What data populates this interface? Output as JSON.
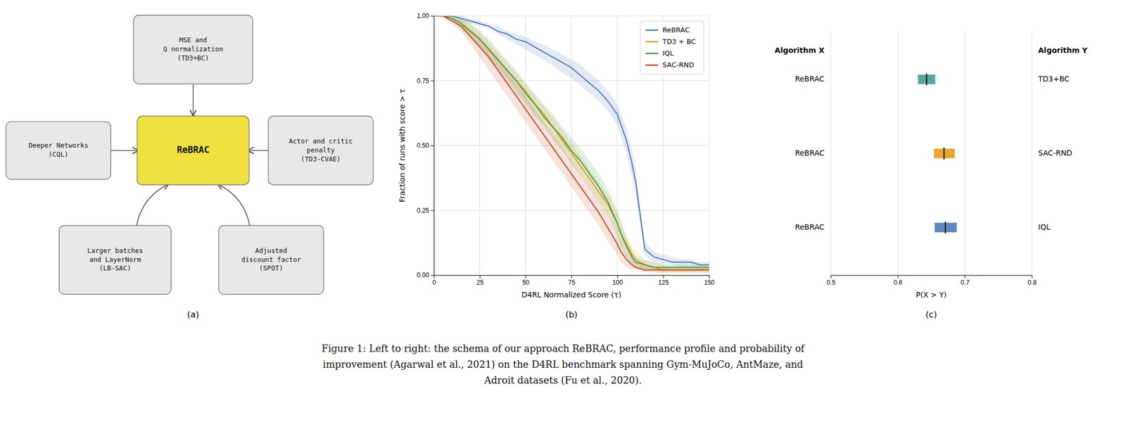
{
  "caption": "Figure 1: Left to right: the schema of our approach ReBRAC, performance profile and probability of\nimprovement (Agarwal et al., 2021) on the D4RL benchmark spanning Gym-MuJoCo, AntMaze, and\nAdroit datasets (Fu et al., 2020).",
  "chart_data": [
    {
      "type": "flow",
      "title": "(a)",
      "nodes": [
        "ReBRAC",
        "MSE and\nQ normalization\n(TD3+BC)",
        "Deeper Networks\n(CQL)",
        "Actor and critic\npenalty\n(TD3-CVAE)",
        "Larger batches\nand LayerNorm\n(LB-SAC)",
        "Adjusted\ndiscount factor\n(SPOT)"
      ],
      "colors": [
        "#f0e040",
        "#e8e8e8",
        "#e8e8e8",
        "#e8e8e8",
        "#e8e8e8",
        "#e8e8e8"
      ],
      "links": [
        {
          "source": 1,
          "target": 0
        },
        {
          "source": 2,
          "target": 0
        },
        {
          "source": 3,
          "target": 0
        },
        {
          "source": 4,
          "target": 0
        },
        {
          "source": 5,
          "target": 0
        }
      ]
    },
    {
      "type": "line",
      "title": "(b)",
      "x_label": "D4RL Normalized Score (τ)",
      "y_label": "Fraction of runs with score > τ",
      "x": [
        0,
        5,
        10,
        15,
        20,
        25,
        30,
        35,
        40,
        45,
        50,
        55,
        60,
        65,
        70,
        75,
        80,
        85,
        90,
        95,
        100,
        102,
        105,
        108,
        110,
        115,
        120,
        125,
        130,
        135,
        140,
        145,
        150
      ],
      "xlim": [
        0,
        150
      ],
      "ylim": [
        0.0,
        1.0
      ],
      "xticks": [
        0,
        25,
        50,
        75,
        100,
        125,
        150
      ],
      "yticks": [
        {
          "value": 0.0,
          "label": "0.00"
        },
        {
          "value": 0.25,
          "label": "0.25"
        },
        {
          "value": 0.5,
          "label": "0.50"
        },
        {
          "value": 0.75,
          "label": "0.75"
        },
        {
          "value": 1.0,
          "label": "1.00"
        }
      ],
      "grid": true,
      "legend": "upper right",
      "series": [
        {
          "name": "ReBRAC",
          "color": "#4475b4",
          "values": [
            1.0,
            1.0,
            1.0,
            0.99,
            0.98,
            0.97,
            0.96,
            0.94,
            0.93,
            0.91,
            0.9,
            0.88,
            0.86,
            0.84,
            0.82,
            0.8,
            0.77,
            0.74,
            0.71,
            0.67,
            0.62,
            0.58,
            0.52,
            0.43,
            0.36,
            0.1,
            0.07,
            0.06,
            0.05,
            0.05,
            0.05,
            0.04,
            0.04
          ],
          "y_low": [
            1.0,
            1.0,
            0.99,
            0.98,
            0.97,
            0.96,
            0.95,
            0.93,
            0.91,
            0.89,
            0.87,
            0.85,
            0.83,
            0.81,
            0.78,
            0.76,
            0.73,
            0.7,
            0.67,
            0.63,
            0.58,
            0.53,
            0.47,
            0.38,
            0.31,
            0.07,
            0.05,
            0.04,
            0.04,
            0.03,
            0.03,
            0.03,
            0.03
          ],
          "y_high": [
            1.0,
            1.0,
            1.0,
            1.0,
            0.99,
            0.98,
            0.97,
            0.96,
            0.94,
            0.93,
            0.92,
            0.9,
            0.89,
            0.87,
            0.85,
            0.83,
            0.81,
            0.78,
            0.75,
            0.71,
            0.66,
            0.62,
            0.57,
            0.48,
            0.41,
            0.13,
            0.09,
            0.08,
            0.07,
            0.06,
            0.06,
            0.05,
            0.05
          ]
        },
        {
          "name": "TD3 + BC",
          "color": "#e8960c",
          "values": [
            1.0,
            1.0,
            0.99,
            0.97,
            0.94,
            0.91,
            0.87,
            0.83,
            0.79,
            0.75,
            0.71,
            0.66,
            0.62,
            0.57,
            0.52,
            0.47,
            0.42,
            0.37,
            0.32,
            0.27,
            0.2,
            0.16,
            0.12,
            0.08,
            0.06,
            0.04,
            0.03,
            0.02,
            0.02,
            0.02,
            0.02,
            0.02,
            0.02
          ],
          "y_low": [
            1.0,
            1.0,
            0.98,
            0.95,
            0.92,
            0.88,
            0.84,
            0.8,
            0.76,
            0.72,
            0.67,
            0.62,
            0.58,
            0.53,
            0.48,
            0.43,
            0.38,
            0.33,
            0.28,
            0.23,
            0.16,
            0.12,
            0.09,
            0.05,
            0.04,
            0.02,
            0.02,
            0.01,
            0.01,
            0.01,
            0.01,
            0.01,
            0.01
          ],
          "y_high": [
            1.0,
            1.0,
            1.0,
            0.99,
            0.97,
            0.94,
            0.9,
            0.86,
            0.82,
            0.78,
            0.74,
            0.69,
            0.65,
            0.61,
            0.56,
            0.51,
            0.46,
            0.41,
            0.36,
            0.31,
            0.24,
            0.2,
            0.15,
            0.11,
            0.09,
            0.06,
            0.05,
            0.04,
            0.03,
            0.03,
            0.03,
            0.03,
            0.03
          ]
        },
        {
          "name": "IQL",
          "color": "#3a9a3a",
          "values": [
            1.0,
            1.0,
            0.99,
            0.97,
            0.94,
            0.91,
            0.87,
            0.83,
            0.79,
            0.75,
            0.7,
            0.66,
            0.61,
            0.57,
            0.53,
            0.48,
            0.44,
            0.39,
            0.34,
            0.28,
            0.2,
            0.16,
            0.11,
            0.07,
            0.05,
            0.04,
            0.03,
            0.03,
            0.03,
            0.03,
            0.03,
            0.03,
            0.03
          ],
          "y_low": [
            1.0,
            1.0,
            0.98,
            0.95,
            0.91,
            0.88,
            0.83,
            0.79,
            0.75,
            0.7,
            0.66,
            0.61,
            0.57,
            0.52,
            0.48,
            0.43,
            0.39,
            0.34,
            0.29,
            0.23,
            0.15,
            0.11,
            0.07,
            0.04,
            0.03,
            0.02,
            0.02,
            0.02,
            0.02,
            0.02,
            0.02,
            0.02,
            0.02
          ],
          "y_high": [
            1.0,
            1.0,
            1.0,
            0.99,
            0.97,
            0.94,
            0.91,
            0.87,
            0.83,
            0.79,
            0.74,
            0.7,
            0.66,
            0.62,
            0.57,
            0.53,
            0.49,
            0.44,
            0.39,
            0.33,
            0.25,
            0.21,
            0.15,
            0.1,
            0.07,
            0.06,
            0.05,
            0.04,
            0.04,
            0.04,
            0.04,
            0.04,
            0.04
          ]
        },
        {
          "name": "SAC-RND",
          "color": "#c0451b",
          "values": [
            1.0,
            1.0,
            0.98,
            0.96,
            0.92,
            0.88,
            0.84,
            0.79,
            0.74,
            0.69,
            0.64,
            0.59,
            0.54,
            0.49,
            0.44,
            0.39,
            0.34,
            0.29,
            0.24,
            0.18,
            0.12,
            0.09,
            0.06,
            0.04,
            0.03,
            0.02,
            0.02,
            0.02,
            0.02,
            0.02,
            0.02,
            0.02,
            0.02
          ],
          "y_low": [
            1.0,
            0.99,
            0.97,
            0.94,
            0.89,
            0.84,
            0.79,
            0.74,
            0.69,
            0.64,
            0.59,
            0.54,
            0.49,
            0.44,
            0.39,
            0.34,
            0.29,
            0.24,
            0.19,
            0.13,
            0.08,
            0.05,
            0.03,
            0.02,
            0.02,
            0.01,
            0.01,
            0.01,
            0.01,
            0.01,
            0.01,
            0.01,
            0.01
          ],
          "y_high": [
            1.0,
            1.0,
            0.99,
            0.98,
            0.95,
            0.92,
            0.88,
            0.84,
            0.79,
            0.74,
            0.69,
            0.64,
            0.59,
            0.54,
            0.49,
            0.44,
            0.39,
            0.34,
            0.29,
            0.23,
            0.16,
            0.13,
            0.09,
            0.06,
            0.05,
            0.04,
            0.03,
            0.03,
            0.03,
            0.03,
            0.03,
            0.03,
            0.03
          ]
        }
      ]
    },
    {
      "type": "interval",
      "title": "(c)",
      "x_label": "P(X > Y)",
      "title_x": "Algorithm X",
      "title_y": "Algorithm Y",
      "xlim": [
        0.5,
        0.8
      ],
      "xticks": [
        0.5,
        0.6,
        0.7,
        0.8
      ],
      "grid": "x",
      "labels_x": [
        "ReBRAC",
        "ReBRAC",
        "ReBRAC"
      ],
      "labels_y": [
        "TD3+BC",
        "SAC-RND",
        "IQL"
      ],
      "values": [
        0.643,
        0.669,
        0.671
      ],
      "low": [
        0.63,
        0.654,
        0.655
      ],
      "high": [
        0.656,
        0.685,
        0.688
      ],
      "colors": [
        "#3a9a8a",
        "#e8960c",
        "#4475b4"
      ]
    }
  ]
}
